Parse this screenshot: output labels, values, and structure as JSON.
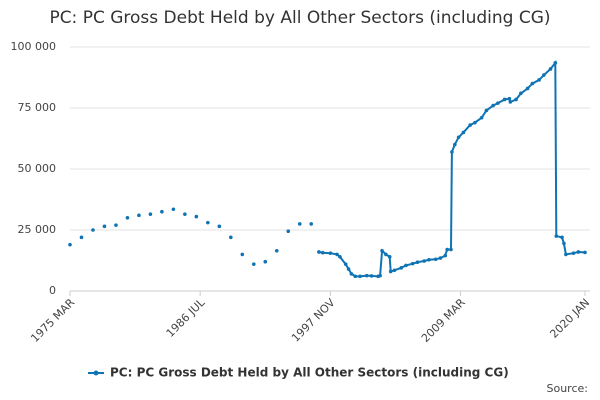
{
  "chart_data": {
    "type": "line",
    "title": "PC: PC Gross Debt Held by All Other Sectors (including CG)",
    "source_label": "Source:",
    "ylim": [
      0,
      100000
    ],
    "yticks": [
      0,
      {
        "value": 25000,
        "label": "25 000"
      },
      {
        "value": 50000,
        "label": "50 000"
      },
      {
        "value": 75000,
        "label": "75 000"
      },
      {
        "value": 100000,
        "label": "100 000"
      }
    ],
    "xlim": [
      "1975 MAR",
      "2020 JAN"
    ],
    "xticks": [
      "1975 MAR",
      "1986 JUL",
      "1997 NOV",
      "2009 MAR",
      "2020 JAN"
    ],
    "grid": true,
    "series": [
      {
        "name": "PC: PC Gross Debt Held by All Other Sectors (including CG)",
        "color": "#0f73b4",
        "x": [
          "1975 MAR",
          "1975 SEP",
          "1976 MAR",
          "1976 SEP",
          "1977 MAR",
          "1977 SEP",
          "1978 MAR",
          "1978 SEP",
          "1979 MAR",
          "1979 SEP",
          "1980 MAR",
          "1980 SEP",
          "1981 MAR",
          "1981 SEP",
          "1982 MAR",
          "1982 SEP",
          "1983 MAR",
          "1983 SEP",
          "1984 MAR",
          "1984 SEP",
          "1985 MAR",
          "1985 SEP",
          "1986 MAR",
          "1986 SEP",
          "1987 MAR",
          "1987 SEP",
          "1988 MAR",
          "1988 SEP",
          "1989 MAR",
          "1989 SEP",
          "1990 MAR",
          "1990 SEP",
          "1991 MAR",
          "1991 SEP",
          "1992 MAR",
          "1992 SEP",
          "1993 MAR",
          "1993 SEP",
          "1994 MAR",
          "1994 SEP",
          "1995 MAR",
          "1995 SEP",
          "1996 MAR",
          "1996 JUN",
          "1996 NOV",
          "1997 MAR",
          "1997 NOV",
          "1998 JUN",
          "1998 SEP",
          "1999 MAR",
          "1999 JUN",
          "1999 SEP",
          "2000 JAN",
          "2000 JUN",
          "2001 JAN",
          "2001 JUN",
          "2002 JAN",
          "2002 MAR",
          "2002 MAY",
          "2002 SEP",
          "2003 JAN",
          "2003 FEB",
          "2003 JUN",
          "2004 JAN",
          "2004 JUN",
          "2005 JAN",
          "2005 JUN",
          "2006 JAN",
          "2006 JUN",
          "2007 JAN",
          "2007 JUN",
          "2007 NOV",
          "2008 JAN",
          "2008 MAY",
          "2008 JUN",
          "2008 SEP",
          "2009 JAN",
          "2009 JUN",
          "2010 JAN",
          "2010 JUN",
          "2011 JAN",
          "2011 JUN",
          "2012 JAN",
          "2012 JUN",
          "2013 JAN",
          "2013 JUN",
          "2013 JUL",
          "2014 JAN",
          "2014 JUN",
          "2015 JAN",
          "2015 JUN",
          "2016 JAN",
          "2016 JUN",
          "2017 JAN",
          "2017 JUN",
          "2017 JUL",
          "2018 JAN",
          "2018 MAR",
          "2018 MAY",
          "2019 JAN",
          "2019 JUN",
          "2020 JAN"
        ],
        "values": [
          19000,
          null,
          22000,
          null,
          25000,
          null,
          26500,
          null,
          27000,
          null,
          30000,
          null,
          31000,
          null,
          31500,
          null,
          32500,
          null,
          33500,
          null,
          31500,
          null,
          30500,
          null,
          28000,
          null,
          26500,
          null,
          22000,
          null,
          15000,
          null,
          11000,
          null,
          12000,
          null,
          16500,
          null,
          24500,
          null,
          27500,
          null,
          27500,
          null,
          16000,
          15700,
          15500,
          15000,
          14000,
          11000,
          9000,
          7000,
          6000,
          6000,
          6300,
          6200,
          6000,
          6300,
          16500,
          15000,
          14000,
          8000,
          8500,
          9500,
          10500,
          11200,
          11800,
          12300,
          12800,
          13000,
          13500,
          14500,
          17000,
          17000,
          57000,
          60000,
          63000,
          65000,
          68000,
          69000,
          71000,
          74000,
          76000,
          77000,
          78500,
          78800,
          77500,
          78500,
          81000,
          83000,
          85000,
          86500,
          88500,
          91000,
          93500,
          22500,
          22000,
          19500,
          15000,
          15500,
          16000,
          15800
        ]
      }
    ]
  }
}
